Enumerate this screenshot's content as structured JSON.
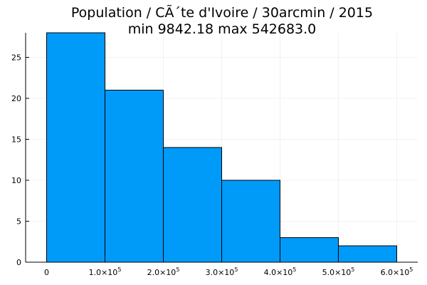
{
  "chart_data": {
    "type": "bar",
    "title_line1": "Population / CÃ´te d'Ivoire / 30arcmin / 2015",
    "title_line2": "min 9842.18  max 542683.0",
    "bins": [
      {
        "start": 0,
        "end": 100000,
        "count": 28
      },
      {
        "start": 100000,
        "end": 200000,
        "count": 21
      },
      {
        "start": 200000,
        "end": 300000,
        "count": 14
      },
      {
        "start": 300000,
        "end": 400000,
        "count": 10
      },
      {
        "start": 400000,
        "end": 500000,
        "count": 3
      },
      {
        "start": 500000,
        "end": 600000,
        "count": 2
      }
    ],
    "x_ticks": [
      {
        "value": 0,
        "mantissa": "0",
        "exponent": ""
      },
      {
        "value": 100000,
        "mantissa": "1.0×10",
        "exponent": "5"
      },
      {
        "value": 200000,
        "mantissa": "2.0×10",
        "exponent": "5"
      },
      {
        "value": 300000,
        "mantissa": "3.0×10",
        "exponent": "5"
      },
      {
        "value": 400000,
        "mantissa": "4.0×10",
        "exponent": "5"
      },
      {
        "value": 500000,
        "mantissa": "5.0×10",
        "exponent": "5"
      },
      {
        "value": 600000,
        "mantissa": "6.0×10",
        "exponent": "5"
      }
    ],
    "y_ticks": [
      0,
      5,
      10,
      15,
      20,
      25
    ],
    "xlim": [
      -36000,
      636000
    ],
    "ylim": [
      0,
      28
    ],
    "bar_color": "#009af9",
    "edge_color": "#000000",
    "grid": true,
    "legend": false
  }
}
